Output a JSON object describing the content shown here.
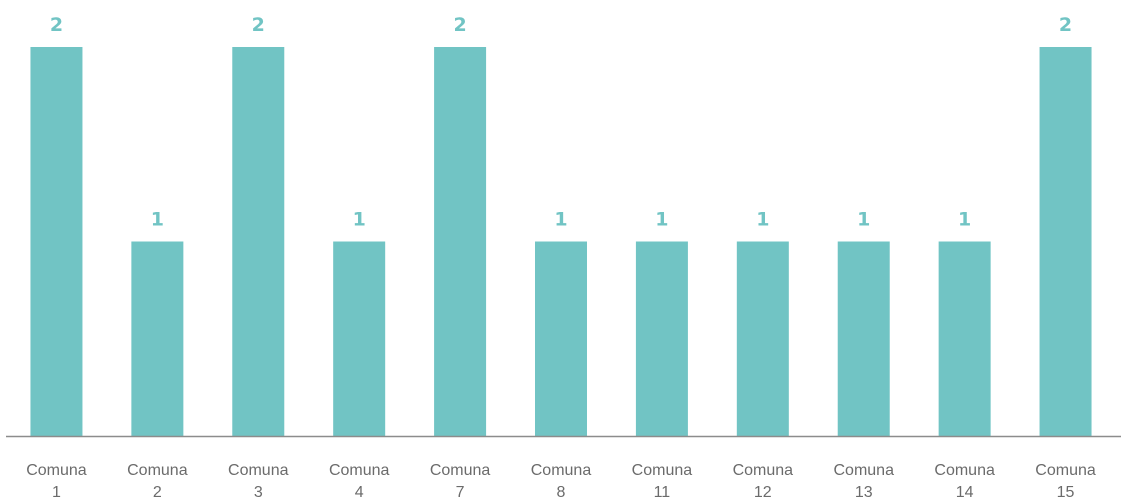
{
  "chart_data": {
    "type": "bar",
    "categories": [
      [
        "Comuna",
        "1"
      ],
      [
        "Comuna",
        "2"
      ],
      [
        "Comuna",
        "3"
      ],
      [
        "Comuna",
        "4"
      ],
      [
        "Comuna",
        "7"
      ],
      [
        "Comuna",
        "8"
      ],
      [
        "Comuna",
        "11"
      ],
      [
        "Comuna",
        "12"
      ],
      [
        "Comuna",
        "13"
      ],
      [
        "Comuna",
        "14"
      ],
      [
        "Comuna",
        "15"
      ]
    ],
    "values": [
      2,
      1,
      2,
      1,
      2,
      1,
      1,
      1,
      1,
      1,
      2
    ],
    "ylim": [
      0,
      2
    ],
    "grid": false,
    "data_labels": true,
    "colors": {
      "bar": "#71c4c4",
      "label": "#71c4c4",
      "axis": "#8c8c8c",
      "tick_text": "#6b6b6b"
    }
  }
}
